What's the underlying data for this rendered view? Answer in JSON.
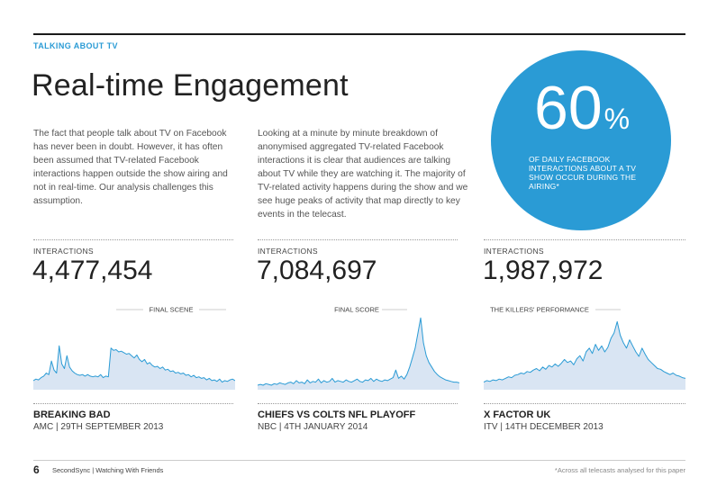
{
  "header": {
    "section": "TALKING ABOUT TV",
    "title": "Real-time Engagement"
  },
  "intro": {
    "paragraph_1": "The fact that people talk about TV on Facebook has never been in doubt. However, it has often been assumed that TV-related Facebook interactions happen outside the show airing and not in real-time. Our analysis challenges this assumption.",
    "paragraph_2": "Looking at a minute by minute breakdown of anonymised aggregated TV-related Facebook interactions it is clear that audiences are talking about TV while they are watching it. The majority of TV-related activity happens during the show and we see huge peaks of activity that map directly to key events in the telecast."
  },
  "stat": {
    "value": "60",
    "unit": "%",
    "description": "OF DAILY FACEBOOK INTERACTIONS ABOUT A TV SHOW OCCUR DURING THE AIRING*",
    "color": "#2a9bd5"
  },
  "shows": [
    {
      "interactions_label": "INTERACTIONS",
      "interactions": "4,477,454",
      "annotation": "FINAL SCENE",
      "name": "BREAKING BAD",
      "meta": "AMC | 29TH SEPTEMBER 2013"
    },
    {
      "interactions_label": "INTERACTIONS",
      "interactions": "7,084,697",
      "annotation": "FINAL SCORE",
      "name": "CHIEFS VS COLTS NFL PLAYOFF",
      "meta": "NBC | 4TH JANUARY 2014"
    },
    {
      "interactions_label": "INTERACTIONS",
      "interactions": "1,987,972",
      "annotation": "THE KILLERS' PERFORMANCE",
      "name": "X FACTOR UK",
      "meta": "ITV | 14TH DECEMBER 2013"
    }
  ],
  "chart_data": [
    {
      "type": "area",
      "x_range": [
        0,
        1
      ],
      "y_range": [
        0,
        1
      ],
      "values": [
        0.12,
        0.14,
        0.13,
        0.16,
        0.18,
        0.22,
        0.2,
        0.38,
        0.26,
        0.22,
        0.58,
        0.34,
        0.28,
        0.45,
        0.3,
        0.25,
        0.22,
        0.2,
        0.19,
        0.2,
        0.18,
        0.2,
        0.18,
        0.17,
        0.18,
        0.17,
        0.2,
        0.16,
        0.18,
        0.17,
        0.55,
        0.52,
        0.53,
        0.5,
        0.51,
        0.49,
        0.47,
        0.48,
        0.45,
        0.42,
        0.46,
        0.4,
        0.37,
        0.4,
        0.34,
        0.36,
        0.32,
        0.3,
        0.31,
        0.28,
        0.3,
        0.26,
        0.27,
        0.24,
        0.25,
        0.22,
        0.23,
        0.21,
        0.22,
        0.19,
        0.2,
        0.17,
        0.19,
        0.16,
        0.17,
        0.15,
        0.16,
        0.13,
        0.15,
        0.12,
        0.13,
        0.11,
        0.14,
        0.1,
        0.12,
        0.11,
        0.13,
        0.14,
        0.12
      ],
      "color": "#2a9bd5",
      "fill": "#d9e5f3"
    },
    {
      "type": "area",
      "x_range": [
        0,
        1
      ],
      "y_range": [
        0,
        1
      ],
      "values": [
        0.06,
        0.07,
        0.06,
        0.08,
        0.07,
        0.06,
        0.08,
        0.07,
        0.09,
        0.08,
        0.07,
        0.09,
        0.1,
        0.08,
        0.12,
        0.09,
        0.1,
        0.08,
        0.13,
        0.09,
        0.11,
        0.1,
        0.14,
        0.09,
        0.12,
        0.1,
        0.11,
        0.15,
        0.1,
        0.12,
        0.11,
        0.1,
        0.13,
        0.11,
        0.1,
        0.12,
        0.14,
        0.11,
        0.1,
        0.13,
        0.12,
        0.15,
        0.11,
        0.14,
        0.12,
        0.11,
        0.13,
        0.12,
        0.14,
        0.16,
        0.26,
        0.15,
        0.18,
        0.14,
        0.2,
        0.3,
        0.42,
        0.55,
        0.75,
        0.95,
        0.62,
        0.45,
        0.36,
        0.3,
        0.24,
        0.2,
        0.17,
        0.15,
        0.13,
        0.12,
        0.11,
        0.1,
        0.1,
        0.09
      ],
      "color": "#2a9bd5",
      "fill": "#d9e5f3"
    },
    {
      "type": "area",
      "x_range": [
        0,
        1
      ],
      "y_range": [
        0,
        1
      ],
      "values": [
        0.1,
        0.12,
        0.11,
        0.13,
        0.12,
        0.14,
        0.13,
        0.15,
        0.17,
        0.16,
        0.19,
        0.2,
        0.22,
        0.21,
        0.24,
        0.23,
        0.26,
        0.28,
        0.25,
        0.3,
        0.27,
        0.32,
        0.3,
        0.34,
        0.31,
        0.35,
        0.4,
        0.36,
        0.38,
        0.33,
        0.41,
        0.45,
        0.38,
        0.5,
        0.55,
        0.48,
        0.6,
        0.52,
        0.58,
        0.5,
        0.56,
        0.68,
        0.75,
        0.9,
        0.72,
        0.62,
        0.55,
        0.66,
        0.58,
        0.5,
        0.44,
        0.55,
        0.47,
        0.4,
        0.36,
        0.32,
        0.28,
        0.27,
        0.24,
        0.22,
        0.2,
        0.22,
        0.19,
        0.18,
        0.16,
        0.15
      ],
      "color": "#2a9bd5",
      "fill": "#d9e5f3"
    }
  ],
  "footer": {
    "page_number": "6",
    "publication": "SecondSync | Watching With Friends",
    "note": "*Across all telecasts analysed for this paper"
  }
}
